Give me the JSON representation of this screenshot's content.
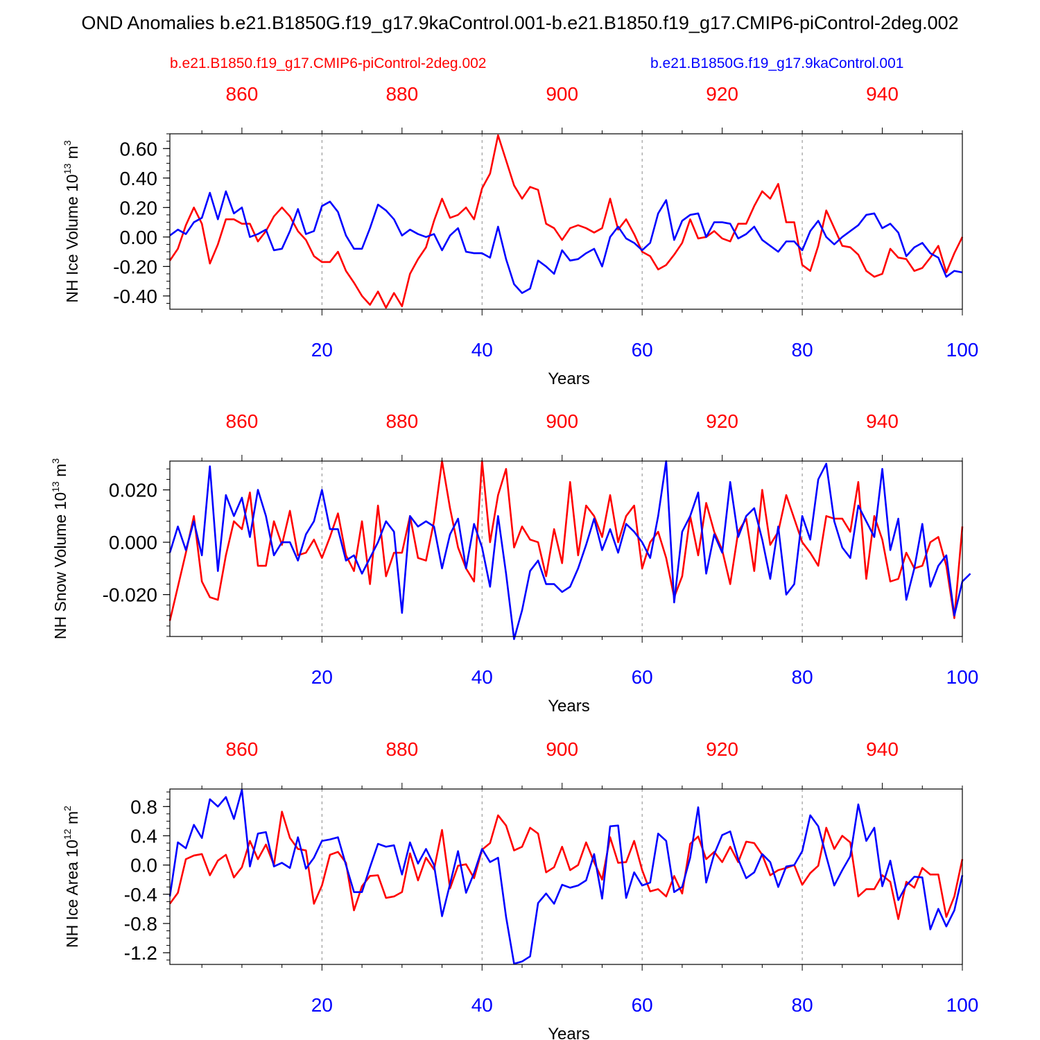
{
  "title": "OND Anomalies b.e21.B1850G.f19_g17.9kaControl.001-b.e21.B1850.f19_g17.CMIP6-piControl-2deg.002",
  "colors": {
    "red": "#ff0000",
    "blue": "#0000ff",
    "axis": "#000000",
    "grid": "#888888"
  },
  "legend": {
    "red_label": "b.e21.B1850.f19_g17.CMIP6-piControl-2deg.002",
    "blue_label": "b.e21.B1850G.f19_g17.9kaControl.001"
  },
  "chart_data": [
    {
      "type": "line",
      "ylabel": "NH Ice Volume",
      "ylabel_unit": "10",
      "ylabel_exp": "13",
      "ylabel_unit_tail": " m",
      "ylabel_unit_exp": "3",
      "xlabel": "Years",
      "xlim": [
        1,
        100
      ],
      "ylim": [
        -0.49,
        0.7
      ],
      "yticks": [
        -0.4,
        -0.2,
        0.0,
        0.2,
        0.4,
        0.6
      ],
      "ytick_labels": [
        "-0.40",
        "-0.20",
        "0.00",
        "0.20",
        "0.40",
        "0.60"
      ],
      "ytick_minor": 0.05,
      "bottom_xticks": [
        20,
        40,
        60,
        80,
        100
      ],
      "bottom_xtick_labels": [
        "20",
        "40",
        "60",
        "80",
        "100"
      ],
      "top_xticks": [
        860,
        880,
        900,
        920,
        940
      ],
      "top_xtick_labels": [
        "860",
        "880",
        "900",
        "920",
        "940"
      ],
      "top_offset": 850,
      "grid_x": [
        20,
        40,
        60,
        80
      ],
      "series": [
        {
          "name": "b.e21.B1850.f19_g17.CMIP6-piControl-2deg.002",
          "color": "#ff0000",
          "values": [
            -0.16,
            -0.08,
            0.08,
            0.2,
            0.09,
            -0.18,
            -0.05,
            0.12,
            0.12,
            0.09,
            0.09,
            -0.03,
            0.04,
            0.14,
            0.2,
            0.14,
            0.04,
            -0.02,
            -0.13,
            -0.17,
            -0.17,
            -0.1,
            -0.23,
            -0.31,
            -0.4,
            -0.46,
            -0.37,
            -0.48,
            -0.38,
            -0.47,
            -0.25,
            -0.15,
            -0.07,
            0.11,
            0.26,
            0.13,
            0.15,
            0.2,
            0.12,
            0.33,
            0.43,
            0.69,
            0.52,
            0.35,
            0.26,
            0.34,
            0.32,
            0.09,
            0.06,
            -0.02,
            0.06,
            0.08,
            0.06,
            0.03,
            0.06,
            0.26,
            0.05,
            0.12,
            0.02,
            -0.1,
            -0.13,
            -0.22,
            -0.19,
            -0.12,
            -0.04,
            0.12,
            -0.01,
            0.0,
            0.04,
            -0.01,
            -0.03,
            0.09,
            0.09,
            0.21,
            0.31,
            0.26,
            0.36,
            0.1,
            0.1,
            -0.19,
            -0.23,
            -0.06,
            0.18,
            0.06,
            -0.06,
            -0.07,
            -0.12,
            -0.23,
            -0.27,
            -0.25,
            -0.08,
            -0.14,
            -0.15,
            -0.23,
            -0.21,
            -0.14,
            -0.06,
            -0.24,
            -0.11,
            0.0
          ]
        },
        {
          "name": "b.e21.B1850G.f19_g17.9kaControl.001",
          "color": "#0000ff",
          "values": [
            0.01,
            0.05,
            0.02,
            0.1,
            0.13,
            0.3,
            0.12,
            0.31,
            0.16,
            0.2,
            0.0,
            0.02,
            0.05,
            -0.09,
            -0.08,
            0.04,
            0.19,
            0.02,
            0.04,
            0.21,
            0.24,
            0.17,
            0.01,
            -0.08,
            -0.08,
            0.06,
            0.22,
            0.18,
            0.12,
            0.01,
            0.05,
            0.02,
            0.0,
            0.02,
            -0.09,
            0.01,
            0.06,
            -0.1,
            -0.11,
            -0.11,
            -0.14,
            0.07,
            -0.15,
            -0.32,
            -0.38,
            -0.35,
            -0.16,
            -0.2,
            -0.25,
            -0.09,
            -0.16,
            -0.15,
            -0.11,
            -0.08,
            -0.2,
            0.0,
            0.07,
            -0.01,
            -0.04,
            -0.09,
            -0.04,
            0.16,
            0.25,
            -0.02,
            0.11,
            0.15,
            0.16,
            0.0,
            0.1,
            0.1,
            0.09,
            -0.01,
            0.02,
            0.07,
            -0.02,
            -0.06,
            -0.1,
            -0.03,
            -0.03,
            -0.09,
            0.04,
            0.11,
            0.0,
            -0.05,
            0.0,
            0.04,
            0.08,
            0.15,
            0.16,
            0.06,
            0.09,
            0.03,
            -0.13,
            -0.07,
            -0.04,
            -0.11,
            -0.14,
            -0.27,
            -0.23,
            -0.24
          ]
        }
      ]
    },
    {
      "type": "line",
      "ylabel": "NH Snow Volume",
      "ylabel_unit": "10",
      "ylabel_exp": "13",
      "ylabel_unit_tail": " m",
      "ylabel_unit_exp": "3",
      "xlabel": "Years",
      "xlim": [
        1,
        100
      ],
      "ylim": [
        -0.036,
        0.031
      ],
      "yticks": [
        -0.02,
        0.0,
        0.02
      ],
      "ytick_labels": [
        "-0.020",
        "0.000",
        "0.020"
      ],
      "ytick_minor": 0.004,
      "bottom_xticks": [
        20,
        40,
        60,
        80,
        100
      ],
      "bottom_xtick_labels": [
        "20",
        "40",
        "60",
        "80",
        "100"
      ],
      "top_xticks": [
        860,
        880,
        900,
        920,
        940
      ],
      "top_xtick_labels": [
        "860",
        "880",
        "900",
        "920",
        "940"
      ],
      "top_offset": 850,
      "grid_x": [
        20,
        40,
        60,
        80
      ],
      "series": [
        {
          "name": "b.e21.B1850.f19_g17.CMIP6-piControl-2deg.002",
          "color": "#ff0000",
          "values": [
            -0.03,
            -0.017,
            -0.004,
            0.01,
            -0.015,
            -0.021,
            -0.022,
            -0.005,
            0.008,
            0.005,
            0.019,
            -0.009,
            -0.009,
            0.008,
            -0.001,
            0.012,
            -0.005,
            -0.004,
            0.001,
            -0.006,
            0.002,
            0.011,
            -0.005,
            -0.011,
            0.008,
            -0.016,
            0.014,
            -0.013,
            -0.004,
            -0.004,
            0.01,
            -0.006,
            -0.007,
            0.008,
            0.031,
            0.013,
            -0.002,
            -0.01,
            -0.015,
            0.031,
            0.0,
            0.018,
            0.028,
            -0.002,
            0.006,
            0.001,
            0.0,
            -0.013,
            0.005,
            -0.008,
            0.023,
            -0.005,
            0.014,
            0.01,
            0.002,
            0.018,
            0.0,
            0.01,
            0.014,
            -0.01,
            0.0,
            0.004,
            -0.006,
            -0.021,
            -0.013,
            0.01,
            -0.005,
            0.015,
            0.004,
            -0.003,
            -0.016,
            0.004,
            0.009,
            -0.011,
            0.02,
            -0.001,
            0.004,
            0.018,
            0.009,
            0.0,
            -0.004,
            -0.009,
            0.01,
            0.009,
            0.009,
            0.004,
            0.023,
            -0.014,
            0.01,
            0.001,
            -0.015,
            -0.014,
            -0.004,
            -0.01,
            -0.009,
            0.0,
            0.002,
            -0.009,
            -0.029,
            0.006
          ]
        },
        {
          "name": "b.e21.B1850G.f19_g17.9kaControl.001",
          "color": "#0000ff",
          "values": [
            -0.004,
            0.006,
            -0.003,
            0.008,
            -0.005,
            0.029,
            -0.011,
            0.018,
            0.01,
            0.017,
            0.002,
            0.02,
            0.01,
            -0.005,
            0.0,
            0.0,
            -0.007,
            0.003,
            0.008,
            0.02,
            0.005,
            0.005,
            -0.007,
            -0.005,
            -0.012,
            -0.006,
            0.0,
            0.008,
            0.004,
            -0.027,
            0.01,
            0.006,
            0.008,
            0.006,
            -0.01,
            0.003,
            0.009,
            -0.01,
            0.007,
            -0.002,
            -0.017,
            0.01,
            -0.012,
            -0.037,
            -0.026,
            -0.011,
            -0.007,
            -0.016,
            -0.016,
            -0.019,
            -0.017,
            -0.01,
            -0.001,
            0.009,
            -0.003,
            0.005,
            -0.004,
            0.007,
            0.004,
            0.0,
            -0.006,
            0.01,
            0.031,
            -0.023,
            0.004,
            0.01,
            0.019,
            -0.012,
            0.003,
            -0.004,
            0.023,
            0.002,
            0.01,
            0.013,
            0.001,
            -0.014,
            0.006,
            -0.02,
            -0.016,
            0.01,
            0.001,
            0.024,
            0.03,
            0.008,
            -0.002,
            -0.006,
            0.014,
            0.008,
            0.002,
            0.028,
            -0.003,
            0.009,
            -0.022,
            -0.01,
            0.007,
            -0.017,
            -0.009,
            -0.005,
            -0.028,
            -0.015,
            -0.012
          ]
        }
      ]
    },
    {
      "type": "line",
      "ylabel": "NH Ice Area",
      "ylabel_unit": "10",
      "ylabel_exp": "12",
      "ylabel_unit_tail": " m",
      "ylabel_unit_exp": "2",
      "xlabel": "Years",
      "xlim": [
        1,
        100
      ],
      "ylim": [
        -1.36,
        1.04
      ],
      "yticks": [
        -1.2,
        -0.8,
        -0.4,
        0.0,
        0.4,
        0.8
      ],
      "ytick_labels": [
        "-1.2",
        "-0.8",
        "-0.4",
        "0.0",
        "0.4",
        "0.8"
      ],
      "ytick_minor": 0.1,
      "bottom_xticks": [
        20,
        40,
        60,
        80,
        100
      ],
      "bottom_xtick_labels": [
        "20",
        "40",
        "60",
        "80",
        "100"
      ],
      "top_xticks": [
        860,
        880,
        900,
        920,
        940
      ],
      "top_xtick_labels": [
        "860",
        "880",
        "900",
        "920",
        "940"
      ],
      "top_offset": 850,
      "grid_x": [
        20,
        40,
        60,
        80
      ],
      "series": [
        {
          "name": "b.e21.B1850.f19_g17.CMIP6-piControl-2deg.002",
          "color": "#ff0000",
          "values": [
            -0.53,
            -0.38,
            0.08,
            0.13,
            0.15,
            -0.14,
            0.06,
            0.14,
            -0.17,
            -0.03,
            0.33,
            0.08,
            0.28,
            0.0,
            0.73,
            0.37,
            0.22,
            0.2,
            -0.53,
            -0.28,
            0.14,
            0.18,
            0.03,
            -0.62,
            -0.29,
            -0.15,
            -0.14,
            -0.45,
            -0.43,
            -0.37,
            0.16,
            -0.21,
            0.1,
            -0.06,
            0.48,
            -0.32,
            -0.01,
            0.01,
            -0.18,
            0.21,
            0.3,
            0.68,
            0.54,
            0.2,
            0.25,
            0.51,
            0.43,
            -0.1,
            -0.03,
            0.25,
            -0.07,
            0.0,
            0.31,
            0.04,
            -0.2,
            0.38,
            0.03,
            0.04,
            0.33,
            -0.07,
            -0.36,
            -0.33,
            -0.43,
            -0.15,
            -0.39,
            0.29,
            0.39,
            0.08,
            0.18,
            0.04,
            0.25,
            0.04,
            0.32,
            0.3,
            0.14,
            -0.14,
            -0.07,
            -0.04,
            0.0,
            -0.27,
            -0.11,
            -0.01,
            0.51,
            0.22,
            0.4,
            0.31,
            -0.43,
            -0.33,
            -0.33,
            -0.14,
            -0.23,
            -0.74,
            -0.23,
            -0.31,
            -0.04,
            -0.13,
            -0.13,
            -0.71,
            -0.43,
            0.08
          ]
        },
        {
          "name": "b.e21.B1850G.f19_g17.9kaControl.001",
          "color": "#0000ff",
          "values": [
            -0.43,
            0.31,
            0.23,
            0.55,
            0.37,
            0.9,
            0.8,
            0.93,
            0.63,
            1.03,
            -0.02,
            0.43,
            0.45,
            -0.02,
            0.03,
            -0.04,
            0.38,
            -0.05,
            0.1,
            0.33,
            0.35,
            0.38,
            0.0,
            -0.37,
            -0.37,
            -0.03,
            0.29,
            0.25,
            0.27,
            -0.13,
            0.31,
            0.02,
            0.22,
            0.0,
            -0.7,
            -0.26,
            0.19,
            -0.38,
            -0.11,
            0.22,
            0.04,
            0.1,
            -0.71,
            -1.35,
            -1.32,
            -1.25,
            -0.52,
            -0.39,
            -0.53,
            -0.27,
            -0.31,
            -0.28,
            -0.21,
            0.15,
            -0.46,
            0.53,
            0.54,
            -0.45,
            -0.1,
            -0.28,
            -0.24,
            0.43,
            0.33,
            -0.37,
            -0.3,
            0.1,
            0.79,
            -0.24,
            0.15,
            0.41,
            0.46,
            0.08,
            -0.18,
            -0.1,
            0.15,
            0.04,
            -0.3,
            -0.02,
            0.0,
            0.19,
            0.68,
            0.53,
            0.12,
            -0.28,
            -0.07,
            0.12,
            0.83,
            0.33,
            0.51,
            -0.29,
            0.06,
            -0.48,
            -0.28,
            -0.16,
            -0.17,
            -0.88,
            -0.6,
            -0.84,
            -0.62,
            -0.14
          ]
        }
      ]
    }
  ]
}
